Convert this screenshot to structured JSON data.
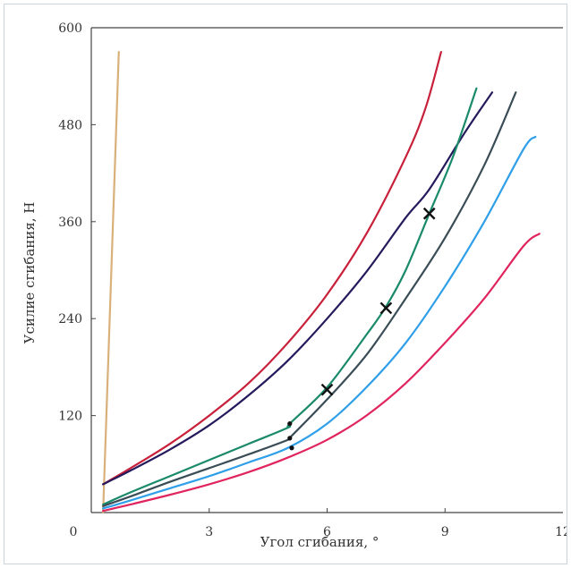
{
  "chart_data": {
    "type": "line",
    "title": "",
    "xlabel": "Угол сгибания, °",
    "ylabel": "Усилие сгибания, Н",
    "xlim": [
      0,
      12
    ],
    "ylim": [
      0,
      600
    ],
    "x_ticks": [
      "0",
      "3",
      "6",
      "9",
      "12"
    ],
    "y_ticks": [
      "120",
      "240",
      "360",
      "480",
      "600"
    ],
    "grid": false,
    "legend": "none",
    "series": [
      {
        "color": "#d9b07a",
        "points": [
          [
            0.3,
            0
          ],
          [
            0.7,
            570
          ]
        ]
      },
      {
        "color": "#c8203a",
        "points": [
          [
            0.3,
            35
          ],
          [
            1,
            55
          ],
          [
            2,
            85
          ],
          [
            3,
            120
          ],
          [
            4,
            160
          ],
          [
            5,
            210
          ],
          [
            6,
            270
          ],
          [
            7,
            345
          ],
          [
            8,
            440
          ],
          [
            8.5,
            500
          ],
          [
            8.9,
            570
          ]
        ]
      },
      {
        "color": "#241a5c",
        "points": [
          [
            0.3,
            35
          ],
          [
            1,
            52
          ],
          [
            2,
            78
          ],
          [
            3,
            108
          ],
          [
            4,
            145
          ],
          [
            5,
            188
          ],
          [
            6,
            240
          ],
          [
            7,
            298
          ],
          [
            8,
            365
          ],
          [
            8.6,
            400
          ],
          [
            9.5,
            470
          ],
          [
            10.2,
            520
          ]
        ]
      },
      {
        "color": "#1a8a6a",
        "points": [
          [
            0.3,
            10
          ],
          [
            1,
            25
          ],
          [
            2,
            45
          ],
          [
            3,
            65
          ],
          [
            4,
            85
          ],
          [
            5,
            105
          ],
          [
            5.05,
            110
          ],
          [
            6,
            155
          ],
          [
            7,
            220
          ],
          [
            7.5,
            255
          ],
          [
            8,
            300
          ],
          [
            8.6,
            370
          ],
          [
            9.2,
            440
          ],
          [
            9.8,
            525
          ]
        ]
      },
      {
        "color": "#3a4d57",
        "points": [
          [
            0.3,
            8
          ],
          [
            1,
            20
          ],
          [
            2,
            38
          ],
          [
            3,
            55
          ],
          [
            4,
            72
          ],
          [
            5,
            90
          ],
          [
            5.1,
            95
          ],
          [
            6,
            140
          ],
          [
            7,
            195
          ],
          [
            8,
            265
          ],
          [
            9,
            340
          ],
          [
            10,
            430
          ],
          [
            10.8,
            520
          ]
        ]
      },
      {
        "color": "#2e9fe8",
        "points": [
          [
            0.3,
            5
          ],
          [
            1,
            15
          ],
          [
            2,
            30
          ],
          [
            3,
            45
          ],
          [
            4,
            62
          ],
          [
            5,
            80
          ],
          [
            6,
            110
          ],
          [
            7,
            155
          ],
          [
            8,
            210
          ],
          [
            9,
            280
          ],
          [
            10,
            360
          ],
          [
            11,
            450
          ],
          [
            11.3,
            465
          ]
        ]
      },
      {
        "color": "#e0245e",
        "points": [
          [
            0.3,
            2
          ],
          [
            1,
            10
          ],
          [
            2,
            22
          ],
          [
            3,
            35
          ],
          [
            4,
            50
          ],
          [
            5,
            68
          ],
          [
            6,
            90
          ],
          [
            7,
            120
          ],
          [
            8,
            160
          ],
          [
            9,
            210
          ],
          [
            10,
            265
          ],
          [
            11,
            330
          ],
          [
            11.4,
            345
          ]
        ]
      }
    ],
    "markers": [
      {
        "kind": "x",
        "x": 6.0,
        "y": 152
      },
      {
        "kind": "x",
        "x": 7.5,
        "y": 253
      },
      {
        "kind": "x",
        "x": 8.6,
        "y": 370
      },
      {
        "kind": "dot",
        "x": 5.05,
        "y": 110
      },
      {
        "kind": "dot",
        "x": 5.05,
        "y": 92
      },
      {
        "kind": "dot",
        "x": 5.1,
        "y": 80
      }
    ]
  }
}
